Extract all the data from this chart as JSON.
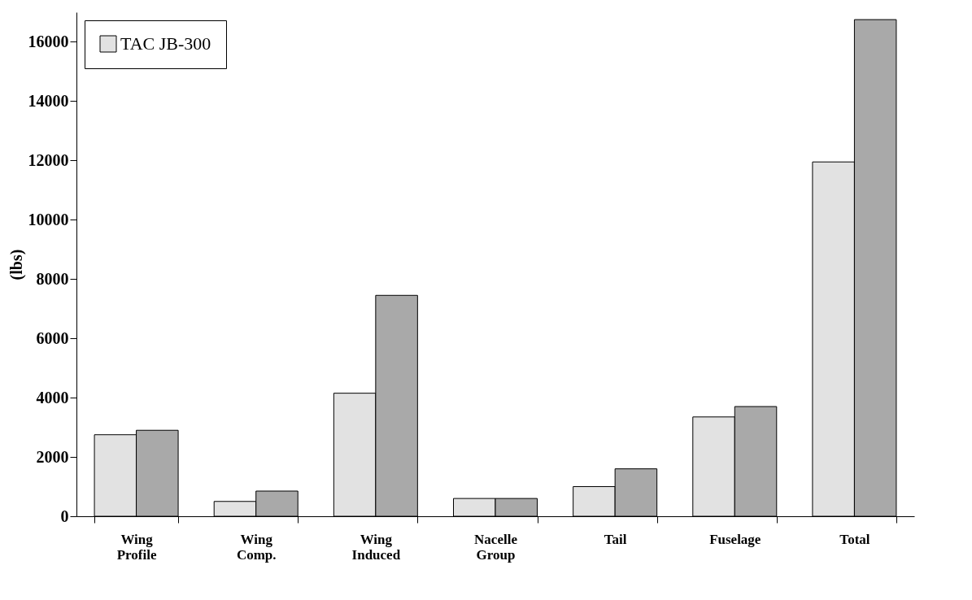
{
  "chart_data": {
    "type": "bar",
    "ylabel": "(lbs)",
    "categories": [
      "Wing Profile",
      "Wing Comp.",
      "Wing Induced",
      "Nacelle Group",
      "Tail",
      "Fuselage",
      "Total"
    ],
    "series": [
      {
        "name": "TAC JB-300",
        "color": "#e2e2e2",
        "values": [
          2750,
          500,
          4150,
          600,
          1000,
          3350,
          11950
        ]
      },
      {
        "color": "#a9a9a9",
        "values": [
          2900,
          850,
          7450,
          600,
          1600,
          3700,
          16750
        ]
      }
    ],
    "ylim": [
      0,
      17000
    ],
    "yticks": [
      0,
      2000,
      4000,
      6000,
      8000,
      10000,
      12000,
      14000,
      16000
    ],
    "grid": false,
    "legend": "top left"
  }
}
